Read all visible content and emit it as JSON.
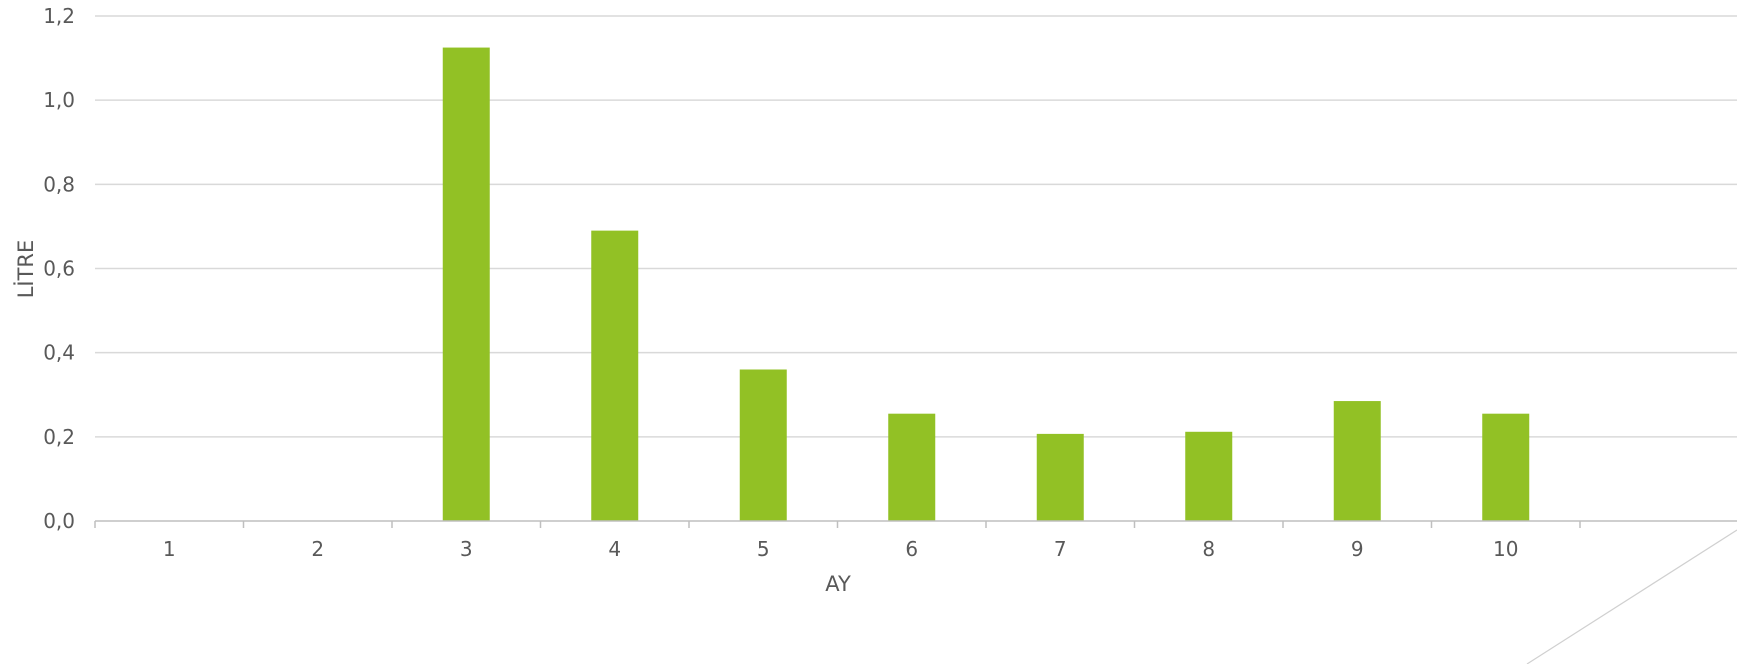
{
  "chart_data": {
    "type": "bar",
    "categories": [
      "1",
      "2",
      "3",
      "4",
      "5",
      "6",
      "7",
      "8",
      "9",
      "10"
    ],
    "series": [
      {
        "values": [
          0,
          0,
          1.125,
          0.69,
          0.36,
          0.255,
          0.207,
          0.212,
          0.285,
          0.255
        ]
      }
    ],
    "xlabel": "AY",
    "ylabel": "LİTRE",
    "ylim": [
      0,
      1.2
    ],
    "yticks": [
      "0,0",
      "0,2",
      "0,4",
      "0,6",
      "0,8",
      "1,0",
      "1,2"
    ],
    "grid": true,
    "legend": "none",
    "colors": {
      "bar": "#92C125",
      "grid": "#D9D9D9",
      "axis": "#BFBFBF",
      "text": "#595959",
      "decoration": "#D0D0D0"
    }
  }
}
